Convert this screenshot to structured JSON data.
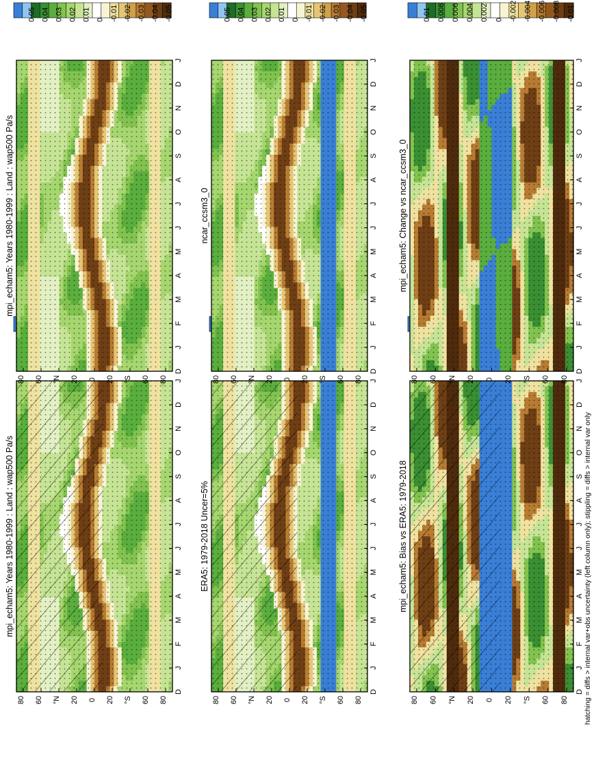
{
  "figure": {
    "footnote": "hatching = diffs > internal var+obs uncertainty (left column only); stippling = diffs > internal var only"
  },
  "chart_data": [
    {
      "type": "heatmap",
      "panel": "model-left",
      "title": "mpi_echam5: Years 1980-1999 : Land : wap500 Pa/s",
      "x_ticks": [
        "D",
        "J",
        "F",
        "M",
        "A",
        "M",
        "J",
        "J",
        "A",
        "S",
        "O",
        "N",
        "D",
        "J"
      ],
      "y_ticks": [
        "80",
        "60",
        "°N",
        "20",
        "0",
        "20",
        "°S",
        "60",
        "80"
      ],
      "colorbar": [
        "0.05",
        "0.04",
        "0.03",
        "0.02",
        "0.01",
        "0",
        "-0.01",
        "-0.02",
        "-0.03",
        "-0.04",
        "-0.05"
      ],
      "band": {
        "lat_peak_JJA": 10,
        "lat_peak_DJF": -10,
        "peak_value": -0.05
      },
      "hatching": true,
      "stippling": true
    },
    {
      "type": "heatmap",
      "panel": "model-right",
      "title": "mpi_echam5: Years 1980-1999 : Land : wap500 Pa/s",
      "x_ticks": [
        "D",
        "J",
        "F",
        "M",
        "A",
        "M",
        "J",
        "J",
        "A",
        "S",
        "O",
        "N",
        "D",
        "J"
      ],
      "y_ticks": [
        "80",
        "60",
        "°N",
        "20",
        "0",
        "20",
        "°S",
        "60",
        "80"
      ],
      "colorbar": [
        "0.05",
        "0.04",
        "0.03",
        "0.02",
        "0.01",
        "0",
        "-0.01",
        "-0.02",
        "-0.03",
        "-0.04",
        "-0.05"
      ],
      "band": {
        "lat_peak_JJA": 10,
        "lat_peak_DJF": -10,
        "peak_value": -0.05
      },
      "hatching": false,
      "stippling": true
    },
    {
      "type": "heatmap",
      "panel": "reference-left",
      "title": "ERA5: 1979-2018 Uncer=5%",
      "x_ticks": [
        "D",
        "J",
        "F",
        "M",
        "A",
        "M",
        "J",
        "J",
        "A",
        "S",
        "O",
        "N",
        "D",
        "J"
      ],
      "y_ticks": [
        "80",
        "60",
        "°N",
        "20",
        "0",
        "20",
        "°S",
        "60",
        "80"
      ],
      "colorbar": [
        "0.05",
        "0.04",
        "0.03",
        "0.02",
        "0.01",
        "0",
        "-0.01",
        "-0.02",
        "-0.03",
        "-0.04",
        "-0.05"
      ],
      "band": {
        "lat_peak_JJA": 10,
        "lat_peak_DJF": -10,
        "peak_value": -0.05
      },
      "hatching": true,
      "stippling": true
    },
    {
      "type": "heatmap",
      "panel": "reference-right",
      "title": "ncar_ccsm3_0",
      "x_ticks": [
        "D",
        "J",
        "F",
        "M",
        "A",
        "M",
        "J",
        "J",
        "A",
        "S",
        "O",
        "N",
        "D",
        "J"
      ],
      "y_ticks": [
        "80",
        "60",
        "°N",
        "20",
        "0",
        "20",
        "°S",
        "60",
        "80"
      ],
      "colorbar": [
        "0.05",
        "0.04",
        "0.03",
        "0.02",
        "0.01",
        "0",
        "-0.01",
        "-0.02",
        "-0.03",
        "-0.04",
        "-0.05"
      ],
      "band": {
        "lat_peak_JJA": 10,
        "lat_peak_DJF": -10,
        "peak_value": -0.05
      },
      "hatching": false,
      "stippling": true
    },
    {
      "type": "heatmap",
      "panel": "diff-left",
      "title": "mpi_echam5: Bias vs ERA5: 1979-2018",
      "x_ticks": [
        "D",
        "J",
        "F",
        "M",
        "A",
        "M",
        "J",
        "J",
        "A",
        "S",
        "O",
        "N",
        "D",
        "J"
      ],
      "y_ticks": [
        "80",
        "60",
        "°N",
        "20",
        "0",
        "20",
        "°S",
        "60",
        "80"
      ],
      "colorbar": [
        "0.01",
        "0.008",
        "0.006",
        "0.004",
        "0.002",
        "0",
        "-0.002",
        "-0.004",
        "-0.006",
        "-0.008",
        "-0.01"
      ],
      "hatching": true,
      "stippling": true
    },
    {
      "type": "heatmap",
      "panel": "diff-right",
      "title": "mpi_echam5: Change vs ncar_ccsm3_0",
      "x_ticks": [
        "D",
        "J",
        "F",
        "M",
        "A",
        "M",
        "J",
        "J",
        "A",
        "S",
        "O",
        "N",
        "D",
        "J"
      ],
      "y_ticks": [
        "80",
        "60",
        "°N",
        "20",
        "0",
        "20",
        "°S",
        "60",
        "80"
      ],
      "colorbar": [
        "0.01",
        "0.008",
        "0.006",
        "0.004",
        "0.002",
        "0",
        "-0.002",
        "-0.004",
        "-0.006",
        "-0.008",
        "-0.01"
      ],
      "hatching": false,
      "stippling": true
    }
  ],
  "colors": {
    "scale": [
      "#3a7fd6",
      "#8fc6ef",
      "#1f6b28",
      "#3a8f32",
      "#5aae3e",
      "#82c350",
      "#a6d66f",
      "#c6e495",
      "#e2f0c3",
      "#ffffff",
      "#f8f3d2",
      "#efe2a0",
      "#e4c676",
      "#d0a14b",
      "#b77b32",
      "#94581f",
      "#6e3f15",
      "#4e2b0c"
    ],
    "hatch": "#000000"
  }
}
